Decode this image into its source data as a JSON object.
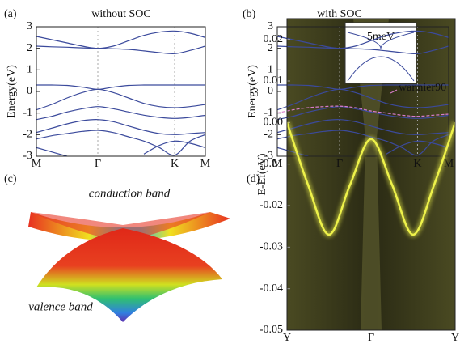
{
  "chart_data": [
    {
      "type": "line",
      "panel_label": "(a)",
      "title": "without SOC",
      "y_label": "Energy(eV)",
      "categories": [
        "M",
        null,
        null,
        null,
        "Γ",
        null,
        null,
        null,
        null,
        "K",
        null,
        "M"
      ],
      "ylim": [
        -3,
        3
      ],
      "yticks": [
        -3,
        -2,
        -1,
        0,
        1,
        2,
        3
      ],
      "series": [
        {
          "color": "#3b4a9c",
          "values": [
            2.55,
            2.4,
            2.25,
            2.1,
            2.0,
            2.1,
            2.35,
            2.6,
            2.75,
            2.8,
            2.7,
            2.5
          ]
        },
        {
          "color": "#3b4a9c",
          "values": [
            2.1,
            2.07,
            2.05,
            2.02,
            2.0,
            1.98,
            1.95,
            1.88,
            1.8,
            1.75,
            1.9,
            2.1
          ]
        },
        {
          "color": "#3b4a9c",
          "values": [
            0.3,
            0.3,
            0.28,
            0.2,
            0.1,
            0.2,
            0.28,
            0.3,
            0.3,
            0.3,
            0.3,
            0.3
          ]
        },
        {
          "color": "#3b4a9c",
          "values": [
            -0.85,
            -0.6,
            -0.3,
            -0.05,
            0.1,
            -0.05,
            -0.3,
            -0.55,
            -0.7,
            -0.75,
            -0.7,
            -0.6
          ]
        },
        {
          "color": "#3b4a9c",
          "values": [
            -1.3,
            -1.15,
            -0.95,
            -0.8,
            -0.7,
            -0.8,
            -0.95,
            -1.1,
            -1.2,
            -1.25,
            -1.2,
            -1.1
          ]
        },
        {
          "color": "#3b4a9c",
          "values": [
            -1.9,
            -1.7,
            -1.5,
            -1.35,
            -1.3,
            -1.4,
            -1.6,
            -1.8,
            -1.95,
            -2.0,
            -1.95,
            -1.9
          ]
        },
        {
          "color": "#3b4a9c",
          "values": [
            -2.2,
            -2.05,
            -1.95,
            -1.85,
            -1.8,
            -1.9,
            -2.1,
            -2.3,
            -2.6,
            -2.95,
            -2.3,
            -2.0
          ]
        },
        {
          "color": "#3b4a9c",
          "values": [
            -2.6,
            -2.8,
            -3.0,
            null,
            null,
            null,
            null,
            -2.9,
            -2.5,
            -2.3,
            -2.4,
            -2.6
          ]
        }
      ]
    },
    {
      "type": "line",
      "panel_label": "(b)",
      "title": "with SOC",
      "y_label": "Energy(eV)",
      "inset_label": "5meV",
      "categories": [
        "M",
        null,
        null,
        null,
        "Γ",
        null,
        null,
        null,
        null,
        "K",
        null,
        "M"
      ],
      "ylim": [
        -3,
        3
      ],
      "yticks": [
        -3,
        -2,
        -1,
        0,
        1,
        2,
        3
      ],
      "series": [
        {
          "color": "#3b4a9c",
          "values": [
            2.55,
            2.4,
            2.25,
            2.1,
            2.0,
            2.1,
            2.35,
            2.6,
            2.75,
            2.8,
            2.7,
            2.5
          ]
        },
        {
          "color": "#3b4a9c",
          "values": [
            2.1,
            2.07,
            2.05,
            2.02,
            2.0,
            1.98,
            1.95,
            1.88,
            1.8,
            1.75,
            1.9,
            2.1
          ]
        },
        {
          "color": "#3b4a9c",
          "values": [
            0.3,
            0.3,
            0.28,
            0.2,
            0.1,
            0.2,
            0.28,
            0.3,
            0.3,
            0.3,
            0.3,
            0.3
          ]
        },
        {
          "color": "#3b4a9c",
          "values": [
            -0.85,
            -0.6,
            -0.3,
            -0.05,
            0.1,
            -0.05,
            -0.3,
            -0.55,
            -0.7,
            -0.75,
            -0.7,
            -0.6
          ]
        },
        {
          "color": "#3b4a9c",
          "values": [
            -1.3,
            -1.15,
            -0.95,
            -0.8,
            -0.7,
            -0.8,
            -0.95,
            -1.1,
            -1.2,
            -1.25,
            -1.2,
            -1.1
          ]
        },
        {
          "color": "#3b4a9c",
          "values": [
            -1.9,
            -1.7,
            -1.5,
            -1.35,
            -1.3,
            -1.4,
            -1.6,
            -1.8,
            -1.95,
            -2.0,
            -1.95,
            -1.9
          ]
        },
        {
          "color": "#3b4a9c",
          "values": [
            -2.2,
            -2.05,
            -1.95,
            -1.85,
            -1.8,
            -1.9,
            -2.1,
            -2.3,
            -2.6,
            -2.95,
            -2.3,
            -2.0
          ]
        },
        {
          "color": "#3b4a9c",
          "values": [
            -2.6,
            -2.8,
            -3.0,
            null,
            null,
            null,
            null,
            -2.9,
            -2.5,
            -2.3,
            -2.4,
            -2.6
          ]
        },
        {
          "name": "wannier90",
          "color": "#d77ccb",
          "dashed": true,
          "values": [
            -1.0,
            -0.85,
            -0.75,
            -0.7,
            -0.68,
            -0.75,
            -0.9,
            -1.0,
            -1.1,
            -1.15,
            -1.1,
            -1.05
          ]
        }
      ]
    },
    {
      "type": "line",
      "panel_label": "(d)",
      "y_label": "E-Ef(eV)",
      "categories": [
        "Y",
        null,
        null,
        null,
        "Γ",
        null,
        null,
        null,
        "Y"
      ],
      "ylim": [
        -0.05,
        0.025
      ],
      "yticks": [
        -0.05,
        -0.04,
        -0.03,
        -0.02,
        -0.01,
        {
          "value": 0,
          "label": "0.00"
        },
        0.01,
        0.02
      ],
      "series": [
        {
          "color": "#eef24a",
          "glow": true,
          "values": [
            0.0,
            -0.015,
            -0.027,
            -0.015,
            -0.004,
            -0.015,
            -0.027,
            -0.015,
            0.0
          ]
        }
      ]
    }
  ],
  "figure": {
    "panel_c": {
      "panel_label": "(c)",
      "top_label": "conduction band",
      "bottom_label": "valence band"
    }
  }
}
